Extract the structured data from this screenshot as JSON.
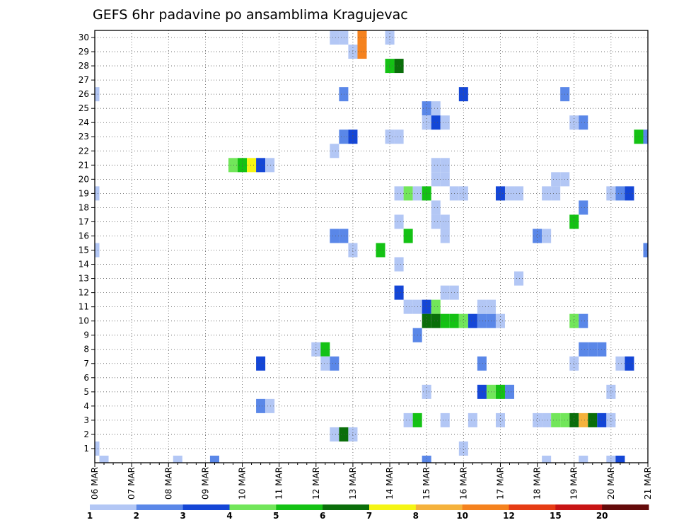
{
  "chart_data": {
    "type": "heatmap",
    "title": "GEFS 6hr padavine po ansamblima Kragujevac",
    "xlabel": "",
    "ylabel": "",
    "x_tick_labels": [
      "06 MAR",
      "07 MAR",
      "08 MAR",
      "09 MAR",
      "10 MAR",
      "11 MAR",
      "12 MAR",
      "13 MAR",
      "14 MAR",
      "15 MAR",
      "16 MAR",
      "17 MAR",
      "18 MAR",
      "19 MAR",
      "20 MAR",
      "21 MAR"
    ],
    "x_range_steps": [
      0,
      60
    ],
    "y_tick_labels": [
      "1",
      "2",
      "3",
      "4",
      "5",
      "6",
      "7",
      "8",
      "9",
      "10",
      "11",
      "12",
      "13",
      "14",
      "15",
      "16",
      "17",
      "18",
      "19",
      "20",
      "21",
      "22",
      "23",
      "24",
      "25",
      "26",
      "27",
      "28",
      "29",
      "30"
    ],
    "y_range": [
      0,
      30
    ],
    "grid": true,
    "legend_placement": "bottom",
    "colorbar": {
      "labels": [
        "1",
        "2",
        "3",
        "4",
        "5",
        "6",
        "7",
        "8",
        "10",
        "12",
        "15",
        "20"
      ],
      "colors": [
        "#b3c7f5",
        "#5a87e8",
        "#1446d6",
        "#72e65a",
        "#14c214",
        "#0a6e0a",
        "#f5f514",
        "#f5b23c",
        "#f5821e",
        "#e63c14",
        "#c81414",
        "#640a0a"
      ]
    },
    "cells": [
      [
        0,
        1,
        1
      ],
      [
        0,
        15,
        1
      ],
      [
        0,
        19,
        1
      ],
      [
        0,
        26,
        1
      ],
      [
        1,
        0,
        1
      ],
      [
        13,
        0,
        2
      ],
      [
        15,
        21,
        4
      ],
      [
        16,
        21,
        5
      ],
      [
        17,
        21,
        7
      ],
      [
        18,
        21,
        3
      ],
      [
        19,
        21,
        1
      ],
      [
        18,
        7,
        3
      ],
      [
        18,
        4,
        2
      ],
      [
        19,
        4,
        1
      ],
      [
        24,
        8,
        1
      ],
      [
        25,
        8,
        5
      ],
      [
        25,
        7,
        1
      ],
      [
        26,
        7,
        2
      ],
      [
        26,
        2,
        1
      ],
      [
        27,
        2,
        6
      ],
      [
        28,
        2,
        1
      ],
      [
        26,
        16,
        2
      ],
      [
        27,
        16,
        2
      ],
      [
        26,
        22,
        1
      ],
      [
        27,
        23,
        2
      ],
      [
        28,
        23,
        3
      ],
      [
        27,
        26,
        2
      ],
      [
        26,
        30,
        1
      ],
      [
        27,
        30,
        1
      ],
      [
        28,
        29,
        1
      ],
      [
        28,
        15,
        1
      ],
      [
        29,
        29,
        9
      ],
      [
        29,
        30,
        9
      ],
      [
        31,
        15,
        5
      ],
      [
        32,
        28,
        5
      ],
      [
        33,
        28,
        6
      ],
      [
        32,
        23,
        1
      ],
      [
        33,
        23,
        1
      ],
      [
        33,
        17,
        1
      ],
      [
        34,
        16,
        5
      ],
      [
        33,
        19,
        1
      ],
      [
        34,
        19,
        4
      ],
      [
        35,
        19,
        1
      ],
      [
        36,
        19,
        5
      ],
      [
        33,
        14,
        1
      ],
      [
        33,
        12,
        3
      ],
      [
        32,
        30,
        1
      ],
      [
        34,
        11,
        1
      ],
      [
        35,
        11,
        1
      ],
      [
        36,
        11,
        3
      ],
      [
        37,
        11,
        4
      ],
      [
        36,
        10,
        6
      ],
      [
        37,
        10,
        6
      ],
      [
        38,
        10,
        5
      ],
      [
        39,
        10,
        5
      ],
      [
        40,
        10,
        4
      ],
      [
        41,
        10,
        3
      ],
      [
        42,
        10,
        2
      ],
      [
        43,
        10,
        2
      ],
      [
        44,
        10,
        1
      ],
      [
        35,
        9,
        2
      ],
      [
        36,
        5,
        1
      ],
      [
        36,
        25,
        2
      ],
      [
        37,
        25,
        1
      ],
      [
        36,
        24,
        1
      ],
      [
        37,
        24,
        3
      ],
      [
        38,
        24,
        1
      ],
      [
        37,
        20,
        1
      ],
      [
        38,
        20,
        1
      ],
      [
        38,
        21,
        1
      ],
      [
        37,
        21,
        1
      ],
      [
        37,
        18,
        1
      ],
      [
        37,
        17,
        1
      ],
      [
        38,
        17,
        1
      ],
      [
        38,
        16,
        1
      ],
      [
        38,
        12,
        1
      ],
      [
        39,
        12,
        1
      ],
      [
        34,
        3,
        1
      ],
      [
        35,
        3,
        5
      ],
      [
        38,
        3,
        1
      ],
      [
        41,
        3,
        1
      ],
      [
        44,
        3,
        1
      ],
      [
        39,
        19,
        1
      ],
      [
        40,
        19,
        1
      ],
      [
        40,
        26,
        3
      ],
      [
        42,
        11,
        1
      ],
      [
        43,
        11,
        1
      ],
      [
        42,
        7,
        2
      ],
      [
        42,
        5,
        3
      ],
      [
        43,
        5,
        4
      ],
      [
        44,
        5,
        5
      ],
      [
        45,
        5,
        2
      ],
      [
        44,
        19,
        3
      ],
      [
        45,
        19,
        1
      ],
      [
        46,
        19,
        1
      ],
      [
        46,
        13,
        1
      ],
      [
        36,
        0,
        2
      ],
      [
        40,
        1,
        1
      ],
      [
        48,
        16,
        2
      ],
      [
        49,
        16,
        1
      ],
      [
        48,
        3,
        1
      ],
      [
        49,
        3,
        1
      ],
      [
        50,
        3,
        4
      ],
      [
        51,
        3,
        4
      ],
      [
        52,
        3,
        6
      ],
      [
        53,
        3,
        8
      ],
      [
        54,
        3,
        6
      ],
      [
        55,
        3,
        3
      ],
      [
        56,
        3,
        1
      ],
      [
        49,
        19,
        1
      ],
      [
        50,
        19,
        1
      ],
      [
        50,
        20,
        1
      ],
      [
        51,
        20,
        1
      ],
      [
        49,
        0,
        1
      ],
      [
        51,
        26,
        2
      ],
      [
        52,
        17,
        5
      ],
      [
        53,
        18,
        2
      ],
      [
        52,
        10,
        4
      ],
      [
        53,
        10,
        2
      ],
      [
        52,
        7,
        1
      ],
      [
        53,
        8,
        2
      ],
      [
        54,
        8,
        2
      ],
      [
        55,
        8,
        2
      ],
      [
        52,
        24,
        1
      ],
      [
        53,
        24,
        2
      ],
      [
        53,
        0,
        1
      ],
      [
        56,
        19,
        1
      ],
      [
        57,
        19,
        2
      ],
      [
        58,
        19,
        3
      ],
      [
        56,
        5,
        1
      ],
      [
        56,
        0,
        1
      ],
      [
        57,
        0,
        3
      ],
      [
        57,
        7,
        1
      ],
      [
        58,
        7,
        3
      ],
      [
        59,
        23,
        5
      ],
      [
        60,
        23,
        2
      ],
      [
        60,
        15,
        2
      ],
      [
        9,
        0,
        1
      ]
    ]
  }
}
